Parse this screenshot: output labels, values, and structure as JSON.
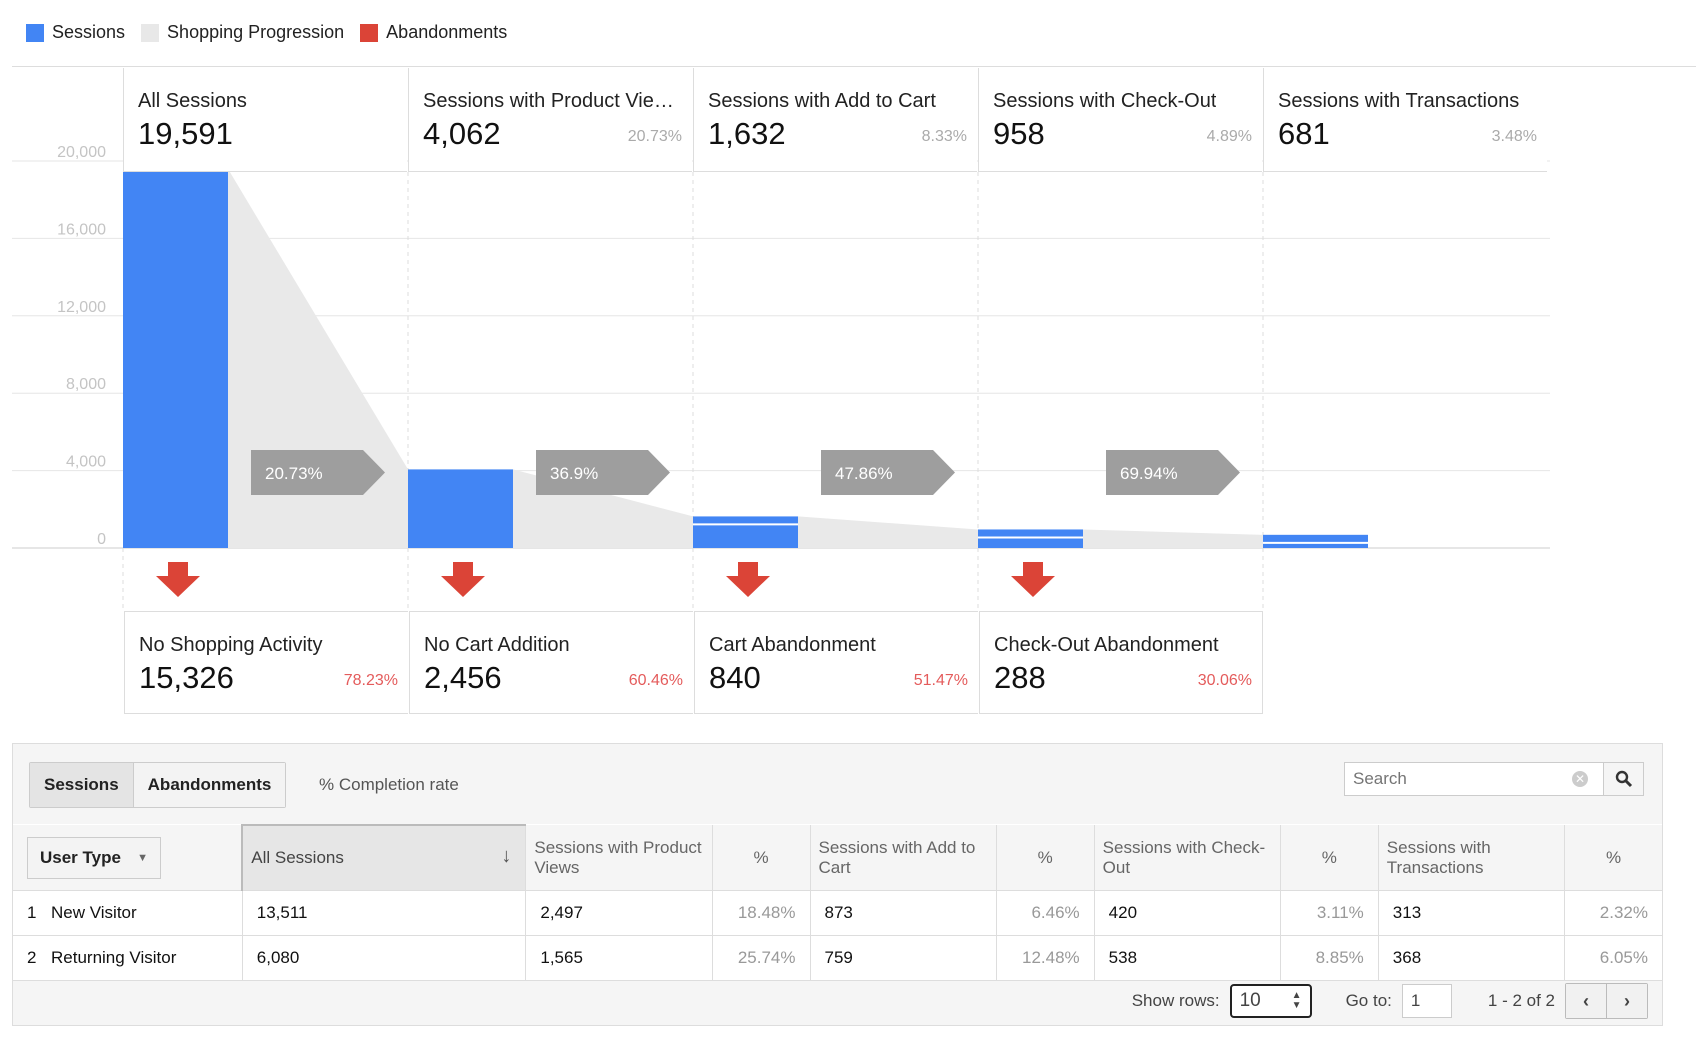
{
  "legend": [
    {
      "label": "Sessions",
      "color": "#4285f4"
    },
    {
      "label": "Shopping Progression",
      "color": "#e8e8e8"
    },
    {
      "label": "Abandonments",
      "color": "#db4437"
    }
  ],
  "stages": [
    {
      "name": "All Sessions",
      "value": "19,591",
      "pct": ""
    },
    {
      "name": "Sessions with Product Vie…",
      "value": "4,062",
      "pct": "20.73%"
    },
    {
      "name": "Sessions with Add to Cart",
      "value": "1,632",
      "pct": "8.33%"
    },
    {
      "name": "Sessions with Check-Out",
      "value": "958",
      "pct": "4.89%"
    },
    {
      "name": "Sessions with Transactions",
      "value": "681",
      "pct": "3.48%"
    }
  ],
  "abandonments": [
    {
      "name": "No Shopping Activity",
      "value": "15,326",
      "pct": "78.23%"
    },
    {
      "name": "No Cart Addition",
      "value": "2,456",
      "pct": "60.46%"
    },
    {
      "name": "Cart Abandonment",
      "value": "840",
      "pct": "51.47%"
    },
    {
      "name": "Check-Out Abandonment",
      "value": "288",
      "pct": "30.06%"
    }
  ],
  "chart_data": {
    "type": "bar",
    "categories": [
      "All Sessions",
      "Sessions with Product Views",
      "Sessions with Add to Cart",
      "Sessions with Check-Out",
      "Sessions with Transactions"
    ],
    "values": [
      19591,
      4062,
      1632,
      958,
      681
    ],
    "progression_rates": [
      "20.73%",
      "36.9%",
      "47.86%",
      "69.94%"
    ],
    "y_ticks": [
      "0",
      "4,000",
      "8,000",
      "12,000",
      "16,000",
      "20,000"
    ],
    "ylim": [
      0,
      20000
    ],
    "grid": true,
    "legend_placement": "top-left"
  },
  "table": {
    "tabs": [
      "Sessions",
      "Abandonments"
    ],
    "active_tab": "Sessions",
    "completion_label": "% Completion rate",
    "search_placeholder": "Search",
    "dimension": "User Type",
    "headers": [
      "All Sessions",
      "Sessions with Product Views",
      "%",
      "Sessions with Add to Cart",
      "%",
      "Sessions with Check-Out",
      "%",
      "Sessions with Transactions",
      "%"
    ],
    "rows": [
      {
        "num": "1",
        "type": "New Visitor",
        "cells": [
          "13,511",
          "2,497",
          "18.48%",
          "873",
          "6.46%",
          "420",
          "3.11%",
          "313",
          "2.32%"
        ]
      },
      {
        "num": "2",
        "type": "Returning Visitor",
        "cells": [
          "6,080",
          "1,565",
          "25.74%",
          "759",
          "12.48%",
          "538",
          "8.85%",
          "368",
          "6.05%"
        ]
      }
    ],
    "show_rows_label": "Show rows:",
    "show_rows_value": "10",
    "goto_label": "Go to:",
    "goto_value": "1",
    "range_text": "1 - 2 of 2"
  }
}
